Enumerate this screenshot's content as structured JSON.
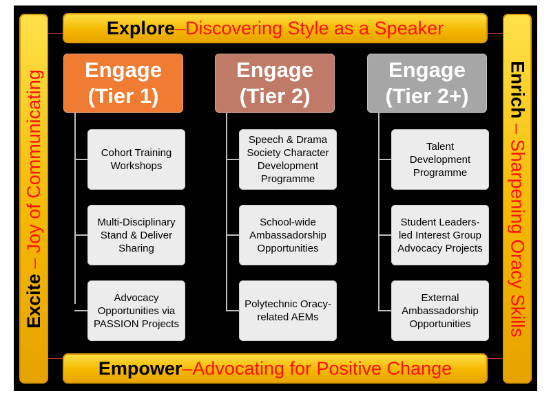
{
  "banners": {
    "top": {
      "keyword": "Explore",
      "dash": " – ",
      "text": "Discovering Style as a Speaker"
    },
    "bottom": {
      "keyword": "Empower",
      "dash": " – ",
      "text": "Advocating for Positive Change"
    },
    "left": {
      "keyword": "Excite",
      "dash": " – ",
      "text": "Joy of Communicating"
    },
    "right": {
      "keyword": "Enrich",
      "dash": " – ",
      "text": "Sharpening Oracy Skills"
    }
  },
  "columns": [
    {
      "title": "Engage",
      "subtitle": "(Tier 1)",
      "color": "#ef7c32",
      "items": [
        "Cohort Training Workshops",
        "Multi-Disciplinary Stand & Deliver Sharing",
        "Advocacy Opportunities via PASSION Projects"
      ]
    },
    {
      "title": "Engage",
      "subtitle": "(Tier 2)",
      "color": "#c07a68",
      "items": [
        "Speech & Drama Society Character Development Programme",
        "School-wide Ambassadorship Opportunities",
        "Polytechnic Oracy-related AEMs"
      ]
    },
    {
      "title": "Engage",
      "subtitle": "(Tier 2+)",
      "color": "#a6a6a6",
      "items": [
        "Talent Development Programme",
        "Student Leaders-led Interest Group Advocacy Projects",
        "External Ambassadorship Opportunities"
      ]
    }
  ]
}
